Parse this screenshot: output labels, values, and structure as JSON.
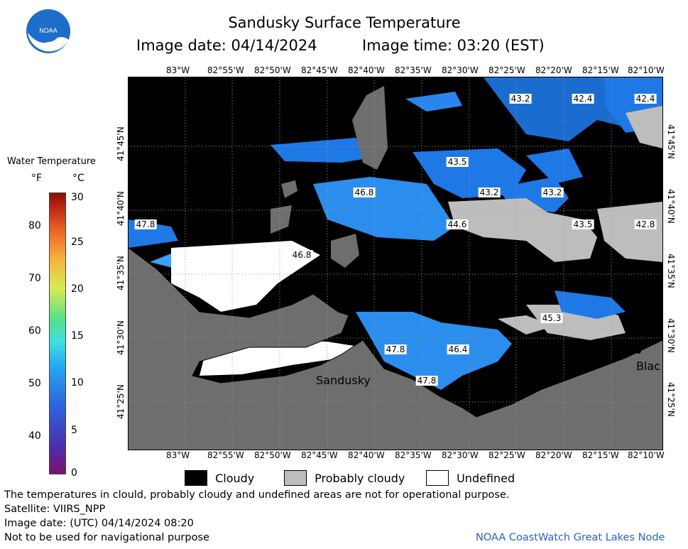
{
  "header": {
    "title": "Sandusky Surface Temperature",
    "image_date": "Image date: 04/14/2024",
    "image_time": "Image time: 03:20 (EST)"
  },
  "logo": {
    "text": "NOAA",
    "colors": {
      "outer": "#1d6ec9",
      "inner": "#ffffff"
    }
  },
  "colorbar": {
    "title": "Water Temperature",
    "unit_f": "°F",
    "unit_c": "°C",
    "f_ticks": [
      "80",
      "70",
      "60",
      "50",
      "40"
    ],
    "c_ticks": [
      "30",
      "25",
      "20",
      "15",
      "10",
      "5",
      "0"
    ]
  },
  "map": {
    "top_ticks": [
      "83°W",
      "82°55'W",
      "82°50'W",
      "82°45'W",
      "82°40'W",
      "82°35'W",
      "82°30'W",
      "82°25'W",
      "82°20'W",
      "82°15'W",
      "82°10'W"
    ],
    "bottom_ticks": [
      "83°W",
      "82°55'W",
      "82°50'W",
      "82°45'W",
      "82°40'W",
      "82°35'W",
      "82°30'W",
      "82°25'W",
      "82°20'W",
      "82°15'W",
      "82°10'W"
    ],
    "left_ticks": [
      "41°45'N",
      "41°40'N",
      "41°35'N",
      "41°30'N",
      "41°25'N"
    ],
    "right_ticks": [
      "41°45'N",
      "41°40'N",
      "41°35'N",
      "41°30'N",
      "41°25'N"
    ],
    "temperature_labels": [
      {
        "id": "t1",
        "text": "43.2"
      },
      {
        "id": "t2",
        "text": "42.4"
      },
      {
        "id": "t3",
        "text": "42.4"
      },
      {
        "id": "t4",
        "text": "43.5"
      },
      {
        "id": "t5",
        "text": "46.8"
      },
      {
        "id": "t6",
        "text": "43.2"
      },
      {
        "id": "t7",
        "text": "43.2"
      },
      {
        "id": "t8",
        "text": "47.8"
      },
      {
        "id": "t9",
        "text": "44.6"
      },
      {
        "id": "t10",
        "text": "43.5"
      },
      {
        "id": "t11",
        "text": "42.8"
      },
      {
        "id": "t12",
        "text": "46.8"
      },
      {
        "id": "t13",
        "text": "45.3"
      },
      {
        "id": "t14",
        "text": "47.8"
      },
      {
        "id": "t15",
        "text": "46.4"
      },
      {
        "id": "t16",
        "text": "47.8"
      }
    ],
    "places": {
      "sandusky": "Sandusky",
      "blac": "Blac"
    },
    "colors": {
      "land": "#6e6e6e",
      "cloudy": "#000000",
      "probably_cloudy": "#bdbdbd",
      "undefined": "#ffffff",
      "water_cold": "#1e78e6",
      "water_warm": "#3aa0ff"
    }
  },
  "legend": {
    "cloudy": "Cloudy",
    "probably_cloudy": "Probably cloudy",
    "undefined": "Undefined"
  },
  "footer": {
    "disclaimer": "The temperatures in clould, probably cloudy and undefined areas are not for operational purpose.",
    "satellite": "Satellite: VIIRS_NPP",
    "utc_date": "Image date: (UTC) 04/14/2024  08:20",
    "nav_warning": "Not to be used for navigational purpose",
    "credit": "NOAA CoastWatch Great Lakes Node"
  }
}
